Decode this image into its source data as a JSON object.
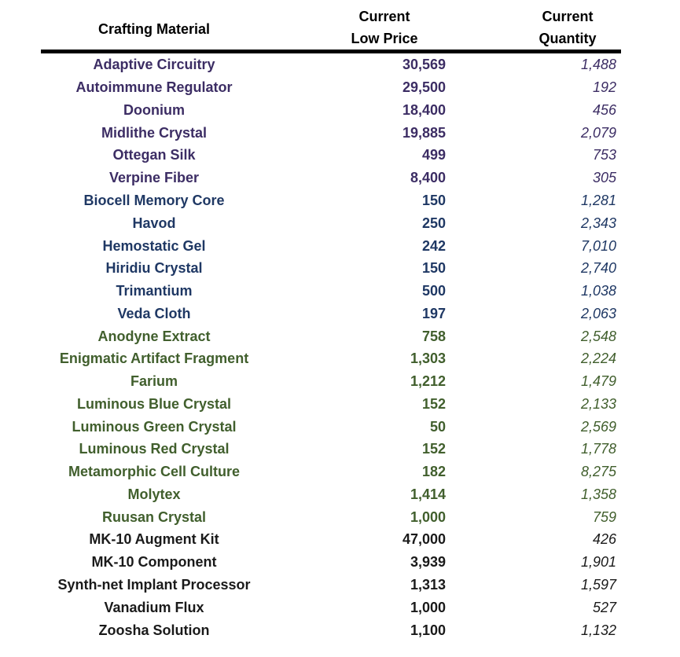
{
  "table": {
    "header": {
      "material": "Crafting Material",
      "price_line1": "Current",
      "price_line2": "Low Price",
      "qty_line1": "Current",
      "qty_line2": "Quantity"
    },
    "rows": [
      {
        "material": "Adaptive Circuitry",
        "low_price": "30,569",
        "quantity": "1,488",
        "group": "purple"
      },
      {
        "material": "Autoimmune Regulator",
        "low_price": "29,500",
        "quantity": "192",
        "group": "purple"
      },
      {
        "material": "Doonium",
        "low_price": "18,400",
        "quantity": "456",
        "group": "purple"
      },
      {
        "material": "Midlithe Crystal",
        "low_price": "19,885",
        "quantity": "2,079",
        "group": "purple"
      },
      {
        "material": "Ottegan Silk",
        "low_price": "499",
        "quantity": "753",
        "group": "purple"
      },
      {
        "material": "Verpine Fiber",
        "low_price": "8,400",
        "quantity": "305",
        "group": "purple"
      },
      {
        "material": "Biocell Memory Core",
        "low_price": "150",
        "quantity": "1,281",
        "group": "blue"
      },
      {
        "material": "Havod",
        "low_price": "250",
        "quantity": "2,343",
        "group": "blue"
      },
      {
        "material": "Hemostatic Gel",
        "low_price": "242",
        "quantity": "7,010",
        "group": "blue"
      },
      {
        "material": "Hiridiu Crystal",
        "low_price": "150",
        "quantity": "2,740",
        "group": "blue"
      },
      {
        "material": "Trimantium",
        "low_price": "500",
        "quantity": "1,038",
        "group": "blue"
      },
      {
        "material": "Veda Cloth",
        "low_price": "197",
        "quantity": "2,063",
        "group": "blue"
      },
      {
        "material": "Anodyne Extract",
        "low_price": "758",
        "quantity": "2,548",
        "group": "green"
      },
      {
        "material": "Enigmatic Artifact Fragment",
        "low_price": "1,303",
        "quantity": "2,224",
        "group": "green"
      },
      {
        "material": "Farium",
        "low_price": "1,212",
        "quantity": "1,479",
        "group": "green"
      },
      {
        "material": "Luminous Blue Crystal",
        "low_price": "152",
        "quantity": "2,133",
        "group": "green"
      },
      {
        "material": "Luminous Green Crystal",
        "low_price": "50",
        "quantity": "2,569",
        "group": "green"
      },
      {
        "material": "Luminous Red Crystal",
        "low_price": "152",
        "quantity": "1,778",
        "group": "green"
      },
      {
        "material": "Metamorphic Cell Culture",
        "low_price": "182",
        "quantity": "8,275",
        "group": "green"
      },
      {
        "material": "Molytex",
        "low_price": "1,414",
        "quantity": "1,358",
        "group": "green"
      },
      {
        "material": "Ruusan Crystal",
        "low_price": "1,000",
        "quantity": "759",
        "group": "green"
      },
      {
        "material": "MK-10 Augment Kit",
        "low_price": "47,000",
        "quantity": "426",
        "group": "black"
      },
      {
        "material": "MK-10 Component",
        "low_price": "3,939",
        "quantity": "1,901",
        "group": "black"
      },
      {
        "material": "Synth-net Implant Processor",
        "low_price": "1,313",
        "quantity": "1,597",
        "group": "black"
      },
      {
        "material": "Vanadium Flux",
        "low_price": "1,000",
        "quantity": "527",
        "group": "black"
      },
      {
        "material": "Zoosha Solution",
        "low_price": "1,100",
        "quantity": "1,132",
        "group": "black"
      }
    ]
  },
  "colors": {
    "purple": "#3C2D64",
    "blue": "#1F3864",
    "green": "#415F2D",
    "black": "#1A1A1A",
    "header_text": "#000000",
    "divider": "#000000"
  }
}
